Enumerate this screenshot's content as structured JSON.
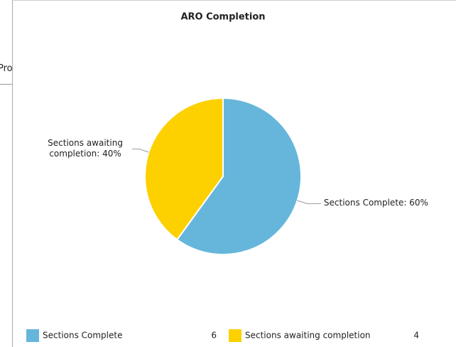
{
  "background": {
    "text": "Pro"
  },
  "chart_data": {
    "type": "pie",
    "title": "ARO Completion",
    "categories": [
      "Sections Complete",
      "Sections awaiting completion"
    ],
    "values": [
      6,
      4
    ],
    "value_labels": [
      "Sections Complete: 60%",
      "Sections awaiting completion: 40%"
    ],
    "colors": [
      "#66b6dc",
      "#fdd000"
    ],
    "legend": "bottom"
  }
}
